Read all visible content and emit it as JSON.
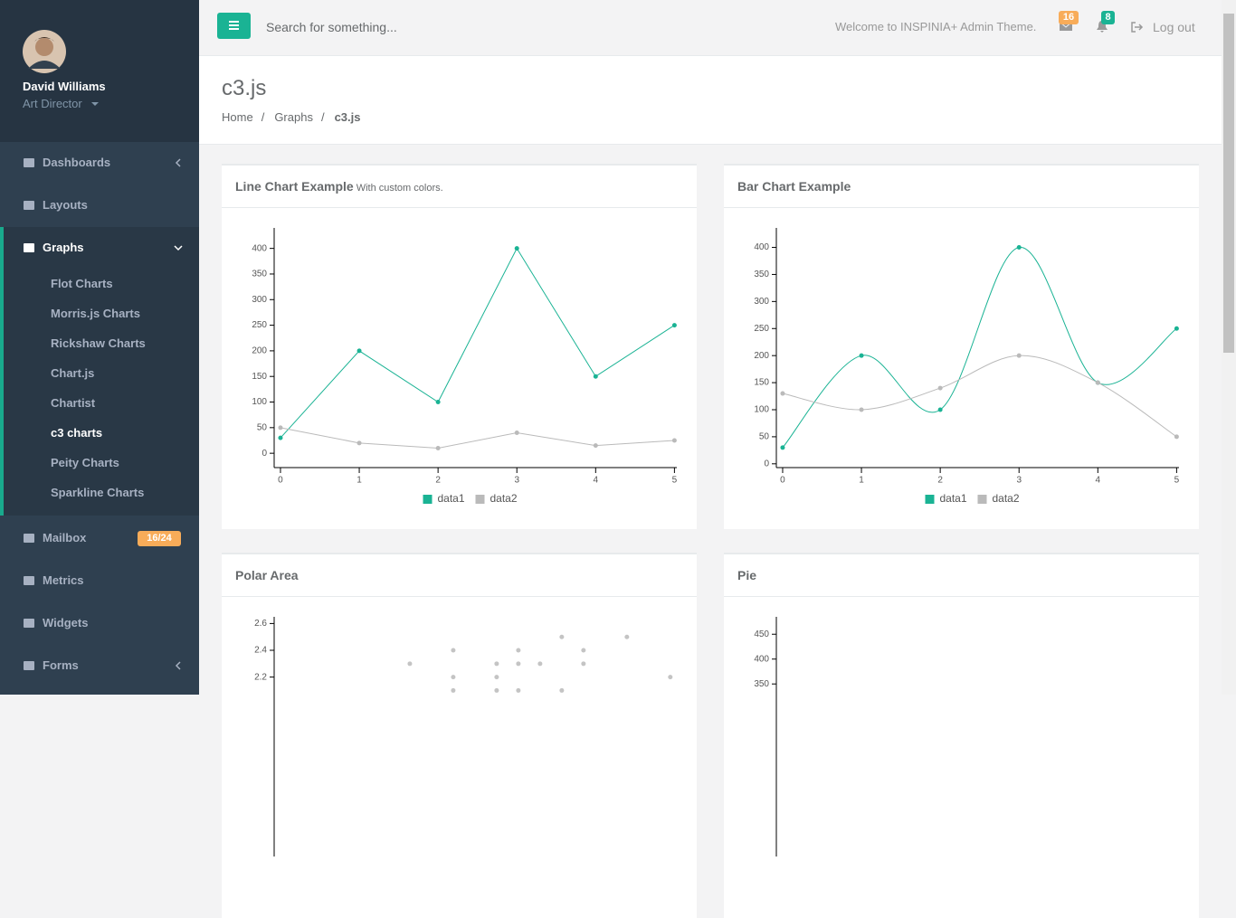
{
  "sidebar": {
    "profile": {
      "name": "David Williams",
      "role": "Art Director"
    },
    "menu": [
      {
        "label": "Dashboards",
        "arrow": "left"
      },
      {
        "label": "Layouts"
      },
      {
        "label": "Graphs",
        "arrow": "down",
        "active_submenu": 5,
        "submenu": [
          "Flot Charts",
          "Morris.js Charts",
          "Rickshaw Charts",
          "Chart.js",
          "Chartist",
          "c3 charts",
          "Peity Charts",
          "Sparkline Charts"
        ]
      },
      {
        "label": "Mailbox",
        "badge": "16/24"
      },
      {
        "label": "Metrics"
      },
      {
        "label": "Widgets"
      },
      {
        "label": "Forms",
        "arrow": "left"
      }
    ]
  },
  "topbar": {
    "search_placeholder": "Search for something...",
    "welcome": "Welcome to INSPINIA+ Admin Theme.",
    "mail_count": 16,
    "notification_count": 8,
    "logout": "Log out"
  },
  "page_heading": {
    "title": "c3.js",
    "breadcrumb": [
      "Home",
      "Graphs",
      "c3.js"
    ],
    "separator": "/"
  },
  "chart_data": [
    {
      "type": "line",
      "title": "Line Chart Example",
      "subtitle": "With custom colors.",
      "x": [
        0,
        1,
        2,
        3,
        4,
        5
      ],
      "series": [
        {
          "name": "data1",
          "color": "#1ab394",
          "values": [
            30,
            200,
            100,
            400,
            150,
            250
          ]
        },
        {
          "name": "data2",
          "color": "#bababa",
          "values": [
            50,
            20,
            10,
            40,
            15,
            25
          ]
        }
      ],
      "xlim": [
        -0.08,
        5.03
      ],
      "ylim": [
        -28,
        440
      ],
      "xticks": [
        0,
        1,
        2,
        3,
        4,
        5
      ],
      "yticks": [
        0,
        50,
        100,
        150,
        200,
        250,
        300,
        350,
        400
      ],
      "legend": "bottom"
    },
    {
      "type": "spline",
      "title": "Bar Chart Example",
      "x": [
        0,
        1,
        2,
        3,
        4,
        5
      ],
      "series": [
        {
          "name": "data1",
          "color": "#1ab394",
          "values": [
            30,
            200,
            100,
            400,
            150,
            250
          ]
        },
        {
          "name": "data2",
          "color": "#bababa",
          "values": [
            130,
            100,
            140,
            200,
            150,
            50
          ]
        }
      ],
      "xlim": [
        -0.08,
        5.03
      ],
      "ylim": [
        -7,
        436
      ],
      "xticks": [
        0,
        1,
        2,
        3,
        4,
        5
      ],
      "yticks": [
        0,
        50,
        100,
        150,
        200,
        250,
        300,
        350,
        400
      ],
      "legend": "bottom"
    },
    {
      "type": "scatter",
      "title": "Polar Area",
      "series": [
        {
          "color": "#c4c4c4",
          "x": [
            6,
            8,
            8,
            8,
            10,
            10,
            10,
            11,
            11,
            11,
            12,
            13,
            13,
            14,
            14,
            16,
            18
          ],
          "values": [
            2.3,
            2.4,
            2.2,
            2.1,
            2.3,
            2.2,
            2.1,
            2.4,
            2.3,
            2.1,
            2.3,
            2.5,
            2.1,
            2.4,
            2.3,
            2.5,
            2.2
          ]
        }
      ],
      "xlim": [
        -0.25,
        18.3
      ],
      "ylim": [
        0.86,
        2.65
      ],
      "yticks": [
        2.2,
        2.4,
        2.6
      ]
    },
    {
      "type": "bar",
      "title": "Pie",
      "series": [],
      "ylim": [
        3,
        485
      ],
      "yticks": [
        350,
        400,
        450
      ]
    }
  ]
}
